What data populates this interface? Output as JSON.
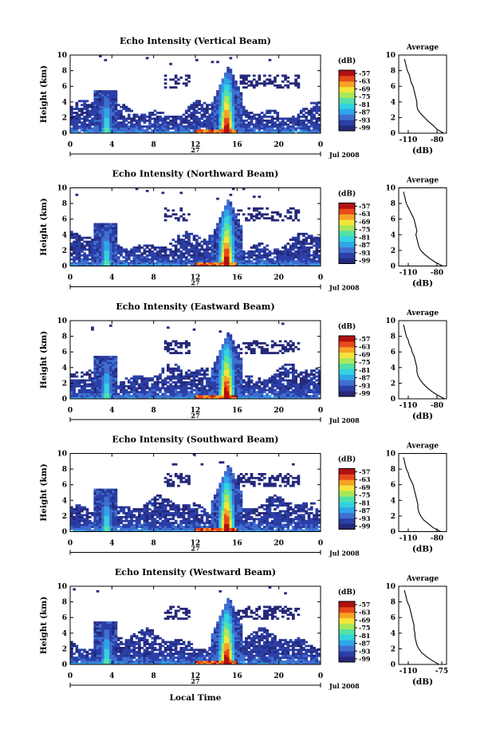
{
  "chart_data": {
    "type": "heatmap",
    "shared": {
      "ylabel": "Height (km)",
      "yticks": [
        0,
        2,
        4,
        6,
        8,
        10
      ],
      "ylim": [
        0,
        10
      ],
      "xlim": [
        0,
        24
      ],
      "xticks": [
        "0",
        "4",
        "8",
        "12",
        "16",
        "20",
        "0"
      ],
      "day_label": "27",
      "month_label": "Jul 2008",
      "xlabel": "Local Time",
      "colorbar_label": "(dB)",
      "colorbar_ticks": [
        "-57",
        "-63",
        "-69",
        "-75",
        "-81",
        "-87",
        "-93",
        "-99"
      ],
      "colormap": [
        "#25287a",
        "#2b3fa6",
        "#3f6fd0",
        "#2fa6e8",
        "#33d2e0",
        "#53e0a8",
        "#a9e85a",
        "#f4e53b",
        "#f7a326",
        "#e84a1a",
        "#b21012"
      ],
      "avg_title": "Average",
      "avg_xlabel": "(dB)"
    },
    "panels": [
      {
        "title": "Echo Intensity (Vertical Beam)",
        "avg_xticks": [
          "-110",
          "-80"
        ],
        "avg_xlim": [
          -120,
          -70
        ],
        "avg_profile": {
          "height_km": [
            0,
            0.5,
            1,
            1.5,
            2,
            2.5,
            3,
            3.5,
            4,
            4.5,
            5,
            5.5,
            6,
            6.5,
            7,
            7.5,
            8,
            8.5,
            9,
            9.5
          ],
          "db": [
            -73,
            -80,
            -84,
            -89,
            -93,
            -97,
            -100,
            -101,
            -101,
            -102,
            -103,
            -104,
            -105,
            -107,
            -108,
            -109,
            -111,
            -112,
            -113,
            -114
          ]
        }
      },
      {
        "title": "Echo Intensity (Northward Beam)",
        "avg_xticks": [
          "-110",
          "-80"
        ],
        "avg_xlim": [
          -120,
          -70
        ],
        "avg_profile": {
          "height_km": [
            0,
            0.5,
            1,
            1.5,
            2,
            2.5,
            3,
            3.5,
            4,
            4.5,
            5,
            5.5,
            6,
            6.5,
            7,
            7.5,
            8,
            8.5,
            9,
            9.5
          ],
          "db": [
            -74,
            -82,
            -88,
            -93,
            -97,
            -99,
            -100,
            -101,
            -102,
            -101,
            -102,
            -103,
            -104,
            -106,
            -108,
            -110,
            -112,
            -113,
            -114,
            -115
          ]
        }
      },
      {
        "title": "Echo Intensity (Eastward Beam)",
        "avg_xticks": [
          "-110",
          "-80"
        ],
        "avg_xlim": [
          -120,
          -70
        ],
        "avg_profile": {
          "height_km": [
            0,
            0.5,
            1,
            1.5,
            2,
            2.5,
            3,
            3.5,
            4,
            4.5,
            5,
            5.5,
            6,
            6.5,
            7,
            7.5,
            8,
            8.5,
            9,
            9.5
          ],
          "db": [
            -72,
            -80,
            -86,
            -91,
            -95,
            -98,
            -100,
            -101,
            -101,
            -102,
            -103,
            -104,
            -106,
            -107,
            -109,
            -110,
            -112,
            -113,
            -114,
            -115
          ]
        }
      },
      {
        "title": "Echo Intensity (Southward Beam)",
        "avg_xticks": [
          "-110",
          "-80"
        ],
        "avg_xlim": [
          -120,
          -70
        ],
        "avg_profile": {
          "height_km": [
            0,
            0.5,
            1,
            1.5,
            2,
            2.5,
            3,
            3.5,
            4,
            4.5,
            5,
            5.5,
            6,
            6.5,
            7,
            7.5,
            8,
            8.5,
            9,
            9.5
          ],
          "db": [
            -76,
            -84,
            -89,
            -94,
            -97,
            -99,
            -100,
            -100,
            -101,
            -102,
            -103,
            -104,
            -105,
            -107,
            -109,
            -110,
            -112,
            -113,
            -114,
            -115
          ]
        }
      },
      {
        "title": "Echo Intensity (Westward Beam)",
        "avg_xticks": [
          "-110",
          "-75"
        ],
        "avg_xlim": [
          -120,
          -70
        ],
        "avg_profile": {
          "height_km": [
            0,
            0.5,
            1,
            1.5,
            2,
            2.5,
            3,
            3.5,
            4,
            4.5,
            5,
            5.5,
            6,
            6.5,
            7,
            7.5,
            8,
            8.5,
            9,
            9.5
          ],
          "db": [
            -78,
            -85,
            -91,
            -96,
            -99,
            -101,
            -102,
            -103,
            -103,
            -104,
            -104,
            -105,
            -106,
            -107,
            -108,
            -109,
            -111,
            -112,
            -113,
            -114
          ]
        }
      }
    ]
  }
}
